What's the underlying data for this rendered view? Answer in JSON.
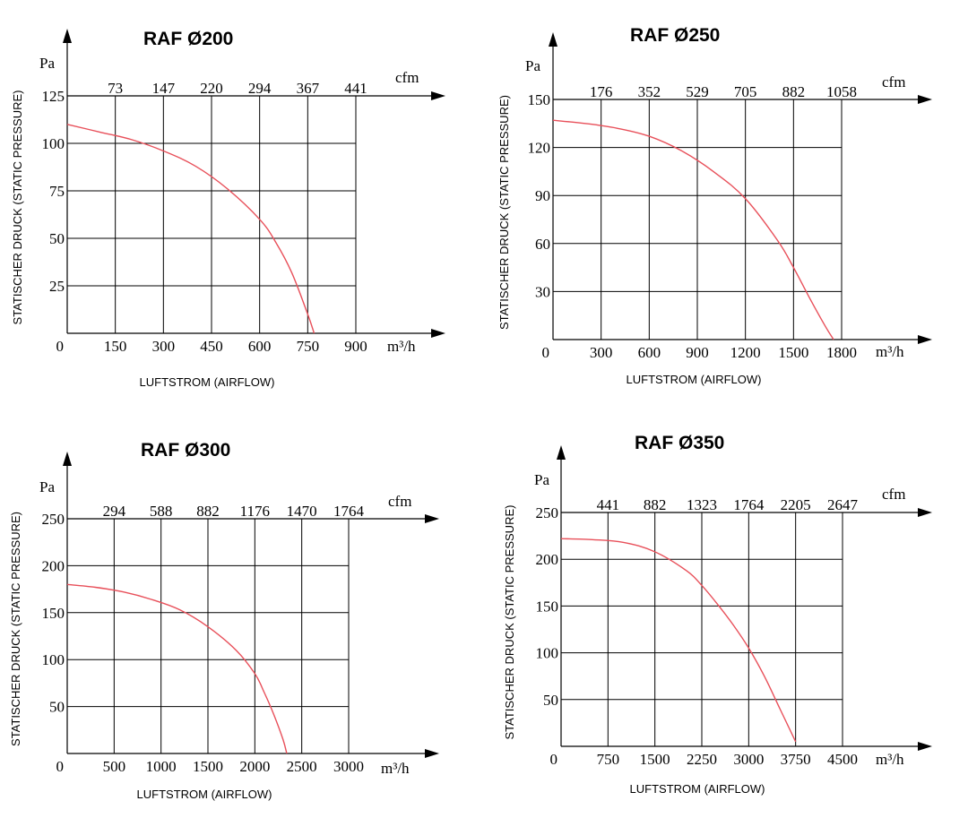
{
  "chart_data": [
    {
      "type": "line",
      "title": "RAF Ø200",
      "xlabel": "LUFTSTROM (AIRFLOW)",
      "ylabel": "STATISCHER DRUCK (STATIC PRESSURE)",
      "x_unit": "m³/h",
      "y_unit": "Pa",
      "secondary_x_unit": "cfm",
      "xlim": [
        0,
        900
      ],
      "ylim": [
        0,
        125
      ],
      "x_ticks": [
        "0",
        "150",
        "300",
        "450",
        "600",
        "750",
        "900"
      ],
      "y_ticks": [
        "0",
        "25",
        "50",
        "75",
        "100",
        "125"
      ],
      "cfm_ticks": [
        "73",
        "147",
        "220",
        "294",
        "367",
        "441"
      ],
      "grid": true,
      "line_color": "#e8505a",
      "series": [
        {
          "x": [
            0,
            100,
            200,
            300,
            400,
            500,
            600,
            650,
            700,
            750,
            770
          ],
          "y": [
            110,
            106,
            102,
            96,
            88,
            76,
            60,
            48,
            32,
            10,
            0
          ]
        }
      ]
    },
    {
      "type": "line",
      "title": "RAF Ø250",
      "xlabel": "LUFTSTROM (AIRFLOW)",
      "ylabel": "STATISCHER DRUCK (STATIC PRESSURE)",
      "x_unit": "m³/h",
      "y_unit": "Pa",
      "secondary_x_unit": "cfm",
      "xlim": [
        0,
        1800
      ],
      "ylim": [
        0,
        150
      ],
      "x_ticks": [
        "0",
        "300",
        "600",
        "900",
        "1200",
        "1500",
        "1800"
      ],
      "y_ticks": [
        "0",
        "30",
        "60",
        "90",
        "120",
        "150"
      ],
      "cfm_ticks": [
        "176",
        "352",
        "529",
        "705",
        "882",
        "1058"
      ],
      "grid": true,
      "line_color": "#e8505a",
      "series": [
        {
          "x": [
            0,
            200,
            400,
            600,
            800,
            1000,
            1200,
            1400,
            1500,
            1600,
            1700,
            1750
          ],
          "y": [
            137,
            135,
            132,
            127,
            118,
            105,
            88,
            62,
            45,
            26,
            8,
            0
          ]
        }
      ]
    },
    {
      "type": "line",
      "title": "RAF Ø300",
      "xlabel": "LUFTSTROM (AIRFLOW)",
      "ylabel": "STATISCHER DRUCK (STATIC PRESSURE)",
      "x_unit": "m³/h",
      "y_unit": "Pa",
      "secondary_x_unit": "cfm",
      "xlim": [
        0,
        3000
      ],
      "ylim": [
        0,
        250
      ],
      "x_ticks": [
        "0",
        "500",
        "1000",
        "1500",
        "2000",
        "2500",
        "3000"
      ],
      "y_ticks": [
        "0",
        "50",
        "100",
        "150",
        "200",
        "250"
      ],
      "cfm_ticks": [
        "294",
        "588",
        "882",
        "1176",
        "1470",
        "1764"
      ],
      "grid": true,
      "line_color": "#e8505a",
      "series": [
        {
          "x": [
            0,
            300,
            600,
            900,
            1200,
            1500,
            1800,
            2000,
            2100,
            2200,
            2300,
            2340
          ],
          "y": [
            180,
            177,
            172,
            164,
            153,
            135,
            110,
            85,
            65,
            42,
            15,
            0
          ]
        }
      ]
    },
    {
      "type": "line",
      "title": "RAF Ø350",
      "xlabel": "LUFTSTROM (AIRFLOW)",
      "ylabel": "STATISCHER DRUCK (STATIC PRESSURE)",
      "x_unit": "m³/h",
      "y_unit": "Pa",
      "secondary_x_unit": "cfm",
      "xlim": [
        0,
        4500
      ],
      "ylim": [
        0,
        250
      ],
      "x_ticks": [
        "0",
        "750",
        "1500",
        "2250",
        "3000",
        "3750",
        "4500"
      ],
      "y_ticks": [
        "0",
        "50",
        "100",
        "150",
        "200",
        "250"
      ],
      "cfm_ticks": [
        "441",
        "882",
        "1323",
        "1764",
        "2205",
        "2647"
      ],
      "grid": true,
      "line_color": "#e8505a",
      "series": [
        {
          "x": [
            0,
            500,
            1000,
            1500,
            2000,
            2250,
            2500,
            2750,
            3000,
            3250,
            3500,
            3750
          ],
          "y": [
            222,
            221,
            218,
            208,
            188,
            172,
            152,
            130,
            105,
            75,
            40,
            5
          ]
        }
      ]
    }
  ]
}
